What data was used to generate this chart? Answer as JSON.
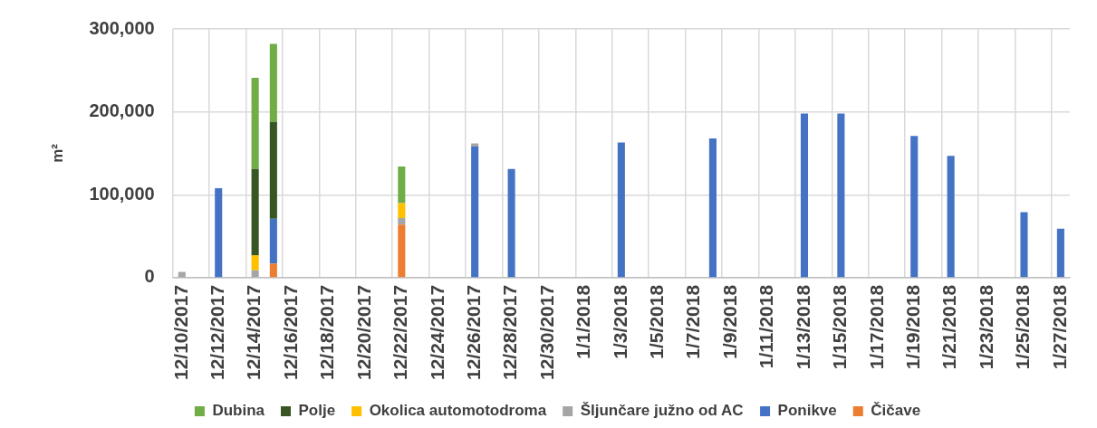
{
  "chart_data": {
    "type": "bar",
    "stacked": true,
    "ylabel": "m²",
    "ylim": [
      0,
      300000
    ],
    "yticks": [
      0,
      {
        "value": 100000,
        "label": "100,000"
      },
      {
        "value": 200000,
        "label": "200,000"
      },
      {
        "value": 300000,
        "label": "300,000"
      }
    ],
    "grid": true,
    "legend": "bottom",
    "categories": [
      "12/10/2017",
      null,
      "12/12/2017",
      null,
      "12/14/2017",
      null,
      "12/16/2017",
      null,
      "12/18/2017",
      null,
      "12/20/2017",
      null,
      "12/22/2017",
      null,
      "12/24/2017",
      null,
      "12/26/2017",
      null,
      "12/28/2017",
      null,
      "12/30/2017",
      null,
      "1/1/2018",
      null,
      "1/3/2018",
      null,
      "1/5/2018",
      null,
      "1/7/2018",
      null,
      "1/9/2018",
      null,
      "1/11/2018",
      null,
      "1/13/2018",
      null,
      "1/15/2018",
      null,
      "1/17/2018",
      null,
      "1/19/2018",
      null,
      "1/21/2018",
      null,
      "1/23/2018",
      null,
      "1/25/2018",
      null,
      "1/27/2018"
    ],
    "series": [
      {
        "name": "Čičave",
        "color": "#ed7d31",
        "values": [
          null,
          null,
          null,
          null,
          null,
          17000,
          null,
          null,
          null,
          null,
          null,
          null,
          64000,
          null,
          null,
          null,
          null,
          null,
          null,
          null,
          null,
          null,
          null,
          null,
          null,
          null,
          null,
          null,
          null,
          null,
          null,
          null,
          null,
          null,
          null,
          null,
          null,
          null,
          null,
          null,
          null,
          null,
          null,
          null,
          null,
          null,
          null,
          null,
          null
        ]
      },
      {
        "name": "Ponikve",
        "color": "#4472c4",
        "values": [
          null,
          null,
          108000,
          null,
          null,
          54000,
          null,
          null,
          null,
          null,
          null,
          null,
          null,
          null,
          null,
          null,
          158000,
          null,
          131000,
          null,
          null,
          null,
          null,
          null,
          163000,
          null,
          null,
          null,
          null,
          168000,
          null,
          null,
          null,
          null,
          198000,
          null,
          198000,
          null,
          null,
          null,
          171000,
          null,
          147000,
          null,
          null,
          null,
          79000,
          null,
          59000
        ]
      },
      {
        "name": "Šljunčare južno od AC",
        "color": "#a5a5a5",
        "values": [
          7000,
          null,
          null,
          null,
          9000,
          null,
          null,
          null,
          null,
          null,
          null,
          null,
          8000,
          null,
          null,
          null,
          4000,
          null,
          null,
          null,
          null,
          null,
          null,
          null,
          null,
          null,
          null,
          null,
          null,
          null,
          null,
          null,
          null,
          null,
          null,
          null,
          null,
          null,
          null,
          null,
          null,
          null,
          null,
          null,
          null,
          null,
          null,
          null,
          null
        ]
      },
      {
        "name": "Okolica automotodroma",
        "color": "#ffc000",
        "values": [
          null,
          null,
          null,
          null,
          18000,
          null,
          null,
          null,
          null,
          null,
          null,
          null,
          18000,
          null,
          null,
          null,
          null,
          null,
          null,
          null,
          null,
          null,
          null,
          null,
          null,
          null,
          null,
          null,
          null,
          null,
          null,
          null,
          null,
          null,
          null,
          null,
          null,
          null,
          null,
          null,
          null,
          null,
          null,
          null,
          null,
          null,
          null,
          null,
          null
        ]
      },
      {
        "name": "Polje",
        "color": "#375623",
        "values": [
          null,
          null,
          null,
          null,
          104000,
          117000,
          null,
          null,
          null,
          null,
          null,
          null,
          null,
          null,
          null,
          null,
          null,
          null,
          null,
          null,
          null,
          null,
          null,
          null,
          null,
          null,
          null,
          null,
          null,
          null,
          null,
          null,
          null,
          null,
          null,
          null,
          null,
          null,
          null,
          null,
          null,
          null,
          null,
          null,
          null,
          null,
          null,
          null,
          null
        ]
      },
      {
        "name": "Dubina",
        "color": "#70ad47",
        "values": [
          null,
          null,
          null,
          null,
          110000,
          94000,
          null,
          null,
          null,
          null,
          null,
          null,
          44000,
          null,
          null,
          null,
          null,
          null,
          null,
          null,
          null,
          null,
          null,
          null,
          null,
          null,
          null,
          null,
          null,
          null,
          null,
          null,
          null,
          null,
          null,
          null,
          null,
          null,
          null,
          null,
          null,
          null,
          null,
          null,
          null,
          null,
          null,
          null,
          null
        ]
      }
    ]
  }
}
